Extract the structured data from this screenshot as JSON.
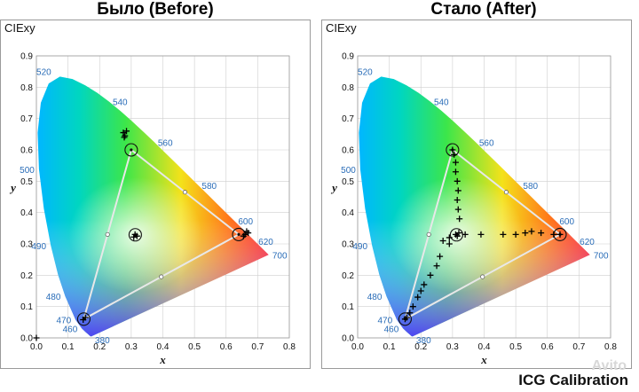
{
  "headings": {
    "before": "Было (Before)",
    "after": "Стало (After)"
  },
  "footer": "ICG Calibration",
  "watermark": "Avito",
  "colors": {
    "gamut_line": "#e8e8e8",
    "wavelength_label": "#2a6db8",
    "grid": "#cfcfcf",
    "marker": "#000000"
  },
  "chart_data": [
    {
      "type": "scatter",
      "title": "Было (Before)",
      "panel_label": "CIExy",
      "xlabel": "x",
      "ylabel": "y",
      "xlim": [
        0,
        0.8
      ],
      "ylim": [
        0,
        0.9
      ],
      "x_ticks": [
        0.0,
        0.1,
        0.2,
        0.3,
        0.4,
        0.5,
        0.6,
        0.7,
        0.8
      ],
      "y_ticks": [
        0.0,
        0.1,
        0.2,
        0.3,
        0.4,
        0.5,
        0.6,
        0.7,
        0.8,
        0.9
      ],
      "x_tick_labels": [
        "0.0",
        "0.1",
        "0.2",
        "0.3",
        "0.4",
        "0.5",
        "0.6",
        "0.7",
        "0.8"
      ],
      "y_tick_labels": [
        "0.0",
        "0.1",
        "0.2",
        "0.3",
        "0.4",
        "0.5",
        "0.6",
        "0.7",
        "0.8",
        "0.9"
      ],
      "grid": true,
      "wavelength_labels": [
        {
          "nm": "380",
          "x": 0.174,
          "y": 0.005
        },
        {
          "nm": "460",
          "x": 0.144,
          "y": 0.03
        },
        {
          "nm": "470",
          "x": 0.124,
          "y": 0.058
        },
        {
          "nm": "480",
          "x": 0.091,
          "y": 0.133
        },
        {
          "nm": "490",
          "x": 0.045,
          "y": 0.295
        },
        {
          "nm": "500",
          "x": 0.008,
          "y": 0.538
        },
        {
          "nm": "520",
          "x": 0.074,
          "y": 0.834
        },
        {
          "nm": "540",
          "x": 0.23,
          "y": 0.754
        },
        {
          "nm": "560",
          "x": 0.373,
          "y": 0.624
        },
        {
          "nm": "580",
          "x": 0.512,
          "y": 0.487
        },
        {
          "nm": "600",
          "x": 0.627,
          "y": 0.373
        },
        {
          "nm": "620",
          "x": 0.691,
          "y": 0.308
        },
        {
          "nm": "700",
          "x": 0.735,
          "y": 0.265
        }
      ],
      "target_gamut": [
        [
          0.64,
          0.33
        ],
        [
          0.3,
          0.6
        ],
        [
          0.15,
          0.06
        ]
      ],
      "target_midpoints": [
        [
          0.225,
          0.33
        ],
        [
          0.47,
          0.465
        ],
        [
          0.395,
          0.195
        ]
      ],
      "circled_points": [
        [
          0.64,
          0.33
        ],
        [
          0.3,
          0.6
        ],
        [
          0.15,
          0.06
        ],
        [
          0.3127,
          0.329
        ]
      ],
      "measured_points": [
        [
          0.66,
          0.33
        ],
        [
          0.665,
          0.34
        ],
        [
          0.655,
          0.325
        ],
        [
          0.67,
          0.335
        ],
        [
          0.275,
          0.655
        ],
        [
          0.28,
          0.645
        ],
        [
          0.285,
          0.66
        ],
        [
          0.278,
          0.64
        ],
        [
          0.155,
          0.065
        ],
        [
          0.148,
          0.058
        ],
        [
          0.312,
          0.33
        ],
        [
          0.318,
          0.325
        ],
        [
          0.308,
          0.322
        ],
        [
          0.0,
          0.0
        ]
      ]
    },
    {
      "type": "scatter",
      "title": "Стало (After)",
      "panel_label": "CIExy",
      "xlabel": "x",
      "ylabel": "y",
      "xlim": [
        0,
        0.8
      ],
      "ylim": [
        0,
        0.9
      ],
      "x_ticks": [
        0.0,
        0.1,
        0.2,
        0.3,
        0.4,
        0.5,
        0.6,
        0.7,
        0.8
      ],
      "y_ticks": [
        0.0,
        0.1,
        0.2,
        0.3,
        0.4,
        0.5,
        0.6,
        0.7,
        0.8,
        0.9
      ],
      "x_tick_labels": [
        "0.0",
        "0.1",
        "0.2",
        "0.3",
        "0.4",
        "0.5",
        "0.6",
        "0.7",
        "0.8"
      ],
      "y_tick_labels": [
        "0.0",
        "0.1",
        "0.2",
        "0.3",
        "0.4",
        "0.5",
        "0.6",
        "0.7",
        "0.8",
        "0.9"
      ],
      "grid": true,
      "wavelength_labels": [
        {
          "nm": "380",
          "x": 0.174,
          "y": 0.005
        },
        {
          "nm": "460",
          "x": 0.144,
          "y": 0.03
        },
        {
          "nm": "470",
          "x": 0.124,
          "y": 0.058
        },
        {
          "nm": "480",
          "x": 0.091,
          "y": 0.133
        },
        {
          "nm": "490",
          "x": 0.045,
          "y": 0.295
        },
        {
          "nm": "500",
          "x": 0.008,
          "y": 0.538
        },
        {
          "nm": "520",
          "x": 0.074,
          "y": 0.834
        },
        {
          "nm": "540",
          "x": 0.23,
          "y": 0.754
        },
        {
          "nm": "560",
          "x": 0.373,
          "y": 0.624
        },
        {
          "nm": "580",
          "x": 0.512,
          "y": 0.487
        },
        {
          "nm": "600",
          "x": 0.627,
          "y": 0.373
        },
        {
          "nm": "620",
          "x": 0.691,
          "y": 0.308
        },
        {
          "nm": "700",
          "x": 0.735,
          "y": 0.265
        }
      ],
      "target_gamut": [
        [
          0.64,
          0.33
        ],
        [
          0.3,
          0.6
        ],
        [
          0.15,
          0.06
        ]
      ],
      "target_midpoints": [
        [
          0.225,
          0.33
        ],
        [
          0.47,
          0.465
        ],
        [
          0.395,
          0.195
        ]
      ],
      "circled_points": [
        [
          0.64,
          0.33
        ],
        [
          0.3,
          0.6
        ],
        [
          0.15,
          0.06
        ],
        [
          0.3127,
          0.329
        ]
      ],
      "measured_points": [
        [
          0.3,
          0.6
        ],
        [
          0.305,
          0.585
        ],
        [
          0.31,
          0.56
        ],
        [
          0.31,
          0.53
        ],
        [
          0.315,
          0.5
        ],
        [
          0.318,
          0.47
        ],
        [
          0.315,
          0.44
        ],
        [
          0.318,
          0.41
        ],
        [
          0.322,
          0.38
        ],
        [
          0.29,
          0.3
        ],
        [
          0.27,
          0.31
        ],
        [
          0.29,
          0.32
        ],
        [
          0.31,
          0.33
        ],
        [
          0.32,
          0.335
        ],
        [
          0.315,
          0.325
        ],
        [
          0.34,
          0.33
        ],
        [
          0.39,
          0.33
        ],
        [
          0.46,
          0.33
        ],
        [
          0.5,
          0.33
        ],
        [
          0.53,
          0.335
        ],
        [
          0.55,
          0.34
        ],
        [
          0.58,
          0.335
        ],
        [
          0.62,
          0.33
        ],
        [
          0.64,
          0.33
        ],
        [
          0.26,
          0.26
        ],
        [
          0.25,
          0.23
        ],
        [
          0.23,
          0.2
        ],
        [
          0.21,
          0.17
        ],
        [
          0.2,
          0.15
        ],
        [
          0.19,
          0.13
        ],
        [
          0.175,
          0.1
        ],
        [
          0.165,
          0.08
        ],
        [
          0.155,
          0.065
        ],
        [
          0.15,
          0.06
        ]
      ]
    }
  ]
}
